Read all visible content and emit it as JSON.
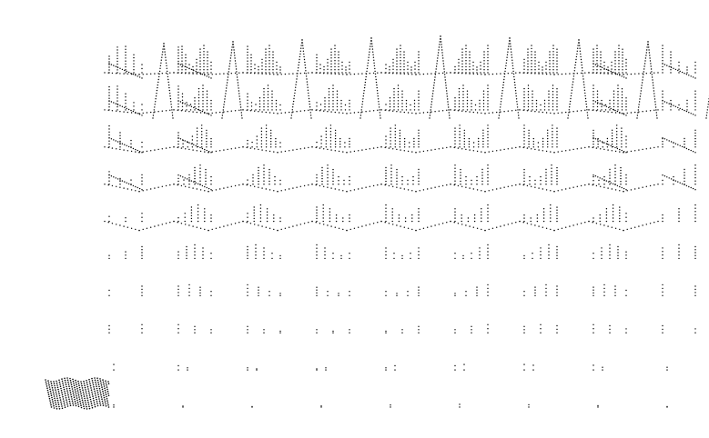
{
  "figure": {
    "background": "#ffffff",
    "ink": "#000000",
    "columns": 9,
    "rows": 10
  }
}
